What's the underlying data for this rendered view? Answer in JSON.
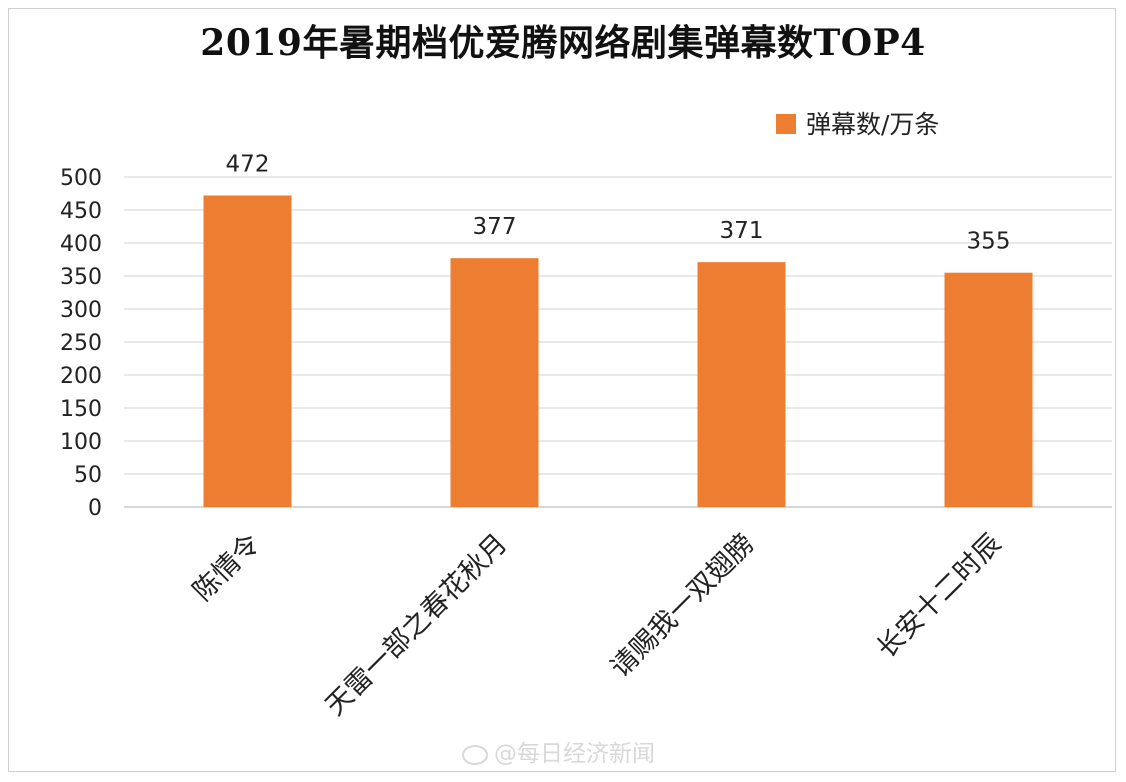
{
  "chart_data": {
    "type": "bar",
    "title": "2019年暑期档优爱腾网络剧集弹幕数TOP4",
    "categories": [
      "陈情令",
      "天雷一部之春花秋月",
      "请赐我一双翅膀",
      "长安十二时辰"
    ],
    "series": [
      {
        "name": "弹幕数/万条",
        "values": [
          472,
          377,
          371,
          355
        ]
      }
    ],
    "ylim": [
      0,
      500
    ],
    "yticks": [
      0,
      50,
      100,
      150,
      200,
      250,
      300,
      350,
      400,
      450,
      500
    ],
    "grid": true,
    "legend": "top-right",
    "bar_color": "#ED7D31"
  },
  "watermark": "@每日经济新闻"
}
